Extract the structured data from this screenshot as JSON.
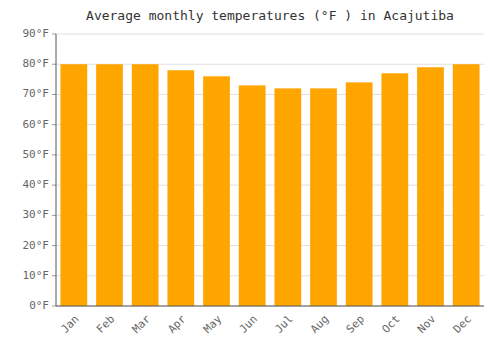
{
  "chart_data": {
    "type": "bar",
    "title": "Average monthly temperatures (°F ) in Acajutiba",
    "categories": [
      "Jan",
      "Feb",
      "Mar",
      "Apr",
      "May",
      "Jun",
      "Jul",
      "Aug",
      "Sep",
      "Oct",
      "Nov",
      "Dec"
    ],
    "values": [
      80,
      80,
      80,
      78,
      76,
      73,
      72,
      72,
      74,
      77,
      79,
      80
    ],
    "color": "#FFA500",
    "ylim": [
      0,
      90
    ],
    "yticks": [
      {
        "value": 0,
        "label": "0°F"
      },
      {
        "value": 10,
        "label": "10°F"
      },
      {
        "value": 20,
        "label": "20°F"
      },
      {
        "value": 30,
        "label": "30°F"
      },
      {
        "value": 40,
        "label": "40°F"
      },
      {
        "value": 50,
        "label": "50°F"
      },
      {
        "value": 60,
        "label": "60°F"
      },
      {
        "value": 70,
        "label": "70°F"
      },
      {
        "value": 80,
        "label": "80°F"
      },
      {
        "value": 90,
        "label": "90°F"
      }
    ],
    "grid": true
  }
}
